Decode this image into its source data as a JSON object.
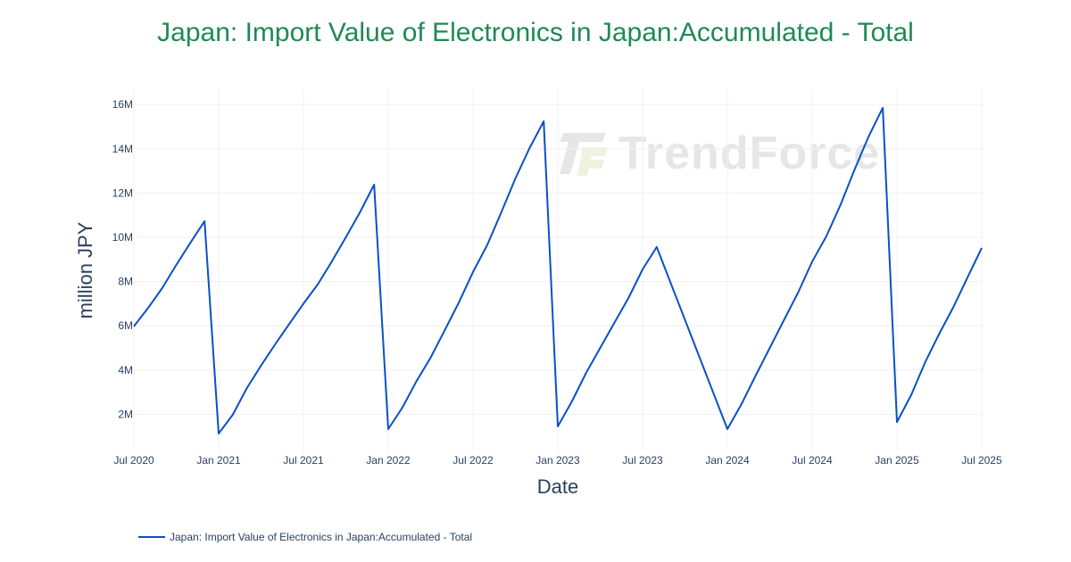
{
  "title": "Japan: Import Value of Electronics in Japan:Accumulated - Total",
  "colors": {
    "title": "#1e8a55",
    "line": "#0a50c8",
    "axis_text": "#2a3f5f",
    "grid": "#f0f0f0",
    "watermark": "#e6e6e6"
  },
  "watermark": {
    "text": "TrendForce"
  },
  "legend": {
    "label": "Japan: Import Value of Electronics in Japan:Accumulated - Total"
  },
  "chart_data": {
    "type": "line",
    "title": "Japan: Import Value of Electronics in Japan:Accumulated - Total",
    "xlabel": "Date",
    "ylabel": "million JPY",
    "x_tick_labels": [
      "Jul 2020",
      "Jan 2021",
      "Jul 2021",
      "Jan 2022",
      "Jul 2022",
      "Jan 2023",
      "Jul 2023",
      "Jan 2024",
      "Jul 2024",
      "Jan 2025",
      "Jul 2025"
    ],
    "y_tick_labels": [
      "2M",
      "4M",
      "6M",
      "8M",
      "10M",
      "12M",
      "14M",
      "16M"
    ],
    "y_ticks": [
      2,
      4,
      6,
      8,
      10,
      12,
      14,
      16
    ],
    "ylim": [
      0,
      16.6
    ],
    "grid": true,
    "legend_position": "bottom-left",
    "series": [
      {
        "name": "Japan: Import Value of Electronics in Japan:Accumulated - Total",
        "unit": "million JPY (M)",
        "points": [
          {
            "x": "2020-07",
            "y": 5.97
          },
          {
            "x": "2020-08",
            "y": 6.8
          },
          {
            "x": "2020-09",
            "y": 7.7
          },
          {
            "x": "2020-10",
            "y": 8.75
          },
          {
            "x": "2020-11",
            "y": 9.75
          },
          {
            "x": "2020-12",
            "y": 10.73
          },
          {
            "x": "2021-01",
            "y": 1.13
          },
          {
            "x": "2021-02",
            "y": 1.98
          },
          {
            "x": "2021-03",
            "y": 3.19
          },
          {
            "x": "2021-04",
            "y": 4.2
          },
          {
            "x": "2021-05",
            "y": 5.16
          },
          {
            "x": "2021-06",
            "y": 6.09
          },
          {
            "x": "2021-07",
            "y": 7.0
          },
          {
            "x": "2021-08",
            "y": 7.86
          },
          {
            "x": "2021-09",
            "y": 8.9
          },
          {
            "x": "2021-10",
            "y": 10.0
          },
          {
            "x": "2021-11",
            "y": 11.13
          },
          {
            "x": "2021-12",
            "y": 12.38
          },
          {
            "x": "2022-01",
            "y": 1.33
          },
          {
            "x": "2022-02",
            "y": 2.3
          },
          {
            "x": "2022-03",
            "y": 3.5
          },
          {
            "x": "2022-04",
            "y": 4.56
          },
          {
            "x": "2022-05",
            "y": 5.8
          },
          {
            "x": "2022-06",
            "y": 7.06
          },
          {
            "x": "2022-07",
            "y": 8.43
          },
          {
            "x": "2022-08",
            "y": 9.64
          },
          {
            "x": "2022-09",
            "y": 11.13
          },
          {
            "x": "2022-10",
            "y": 12.66
          },
          {
            "x": "2022-11",
            "y": 14.03
          },
          {
            "x": "2022-12",
            "y": 15.24
          },
          {
            "x": "2023-01",
            "y": 1.45
          },
          {
            "x": "2023-02",
            "y": 2.58
          },
          {
            "x": "2023-03",
            "y": 3.87
          },
          {
            "x": "2023-04",
            "y": 5.0
          },
          {
            "x": "2023-05",
            "y": 6.13
          },
          {
            "x": "2023-06",
            "y": 7.26
          },
          {
            "x": "2023-07",
            "y": 8.55
          },
          {
            "x": "2023-08",
            "y": 9.56
          },
          {
            "x": "2024-01",
            "y": 1.33
          },
          {
            "x": "2024-02",
            "y": 2.46
          },
          {
            "x": "2024-03",
            "y": 3.75
          },
          {
            "x": "2024-04",
            "y": 5.0
          },
          {
            "x": "2024-05",
            "y": 6.25
          },
          {
            "x": "2024-06",
            "y": 7.5
          },
          {
            "x": "2024-07",
            "y": 8.9
          },
          {
            "x": "2024-08",
            "y": 10.04
          },
          {
            "x": "2024-09",
            "y": 11.45
          },
          {
            "x": "2024-10",
            "y": 13.06
          },
          {
            "x": "2024-11",
            "y": 14.56
          },
          {
            "x": "2024-12",
            "y": 15.85
          },
          {
            "x": "2025-01",
            "y": 1.65
          },
          {
            "x": "2025-02",
            "y": 2.86
          },
          {
            "x": "2025-03",
            "y": 4.35
          },
          {
            "x": "2025-04",
            "y": 5.65
          },
          {
            "x": "2025-05",
            "y": 6.85
          },
          {
            "x": "2025-06",
            "y": 8.19
          },
          {
            "x": "2025-07",
            "y": 9.52
          }
        ]
      }
    ]
  }
}
